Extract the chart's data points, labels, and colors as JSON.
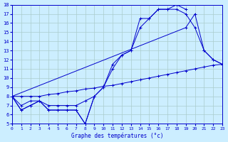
{
  "background_color": "#cceeff",
  "grid_color": "#aacccc",
  "line_color": "#0000cc",
  "x_label": "Graphe des températures (°c)",
  "xlim": [
    0,
    23
  ],
  "ylim": [
    5,
    18
  ],
  "yticks": [
    5,
    6,
    7,
    8,
    9,
    10,
    11,
    12,
    13,
    14,
    15,
    16,
    17,
    18
  ],
  "xticks": [
    0,
    1,
    2,
    3,
    4,
    5,
    6,
    7,
    8,
    9,
    10,
    11,
    12,
    13,
    14,
    15,
    16,
    17,
    18,
    19,
    20,
    21,
    22,
    23
  ],
  "series": [
    {
      "x": [
        0,
        1,
        2,
        3,
        4,
        5,
        6,
        7,
        8,
        9,
        10,
        11,
        12,
        13,
        14,
        15,
        16,
        17,
        18,
        19,
        20,
        21,
        22,
        23
      ],
      "y": [
        8,
        6.5,
        7,
        7.5,
        6.5,
        6.5,
        6.5,
        6.5,
        5.0,
        8.0,
        null,
        null,
        null,
        null,
        null,
        null,
        null,
        null,
        null,
        null,
        null,
        null,
        null,
        null
      ]
    },
    {
      "x": [
        0,
        1,
        2,
        3,
        4,
        5,
        6,
        7,
        8,
        9,
        10,
        11,
        12,
        13,
        14,
        15,
        16,
        17,
        18,
        19,
        20,
        21,
        22,
        23
      ],
      "y": [
        8.0,
        6.5,
        7.0,
        7.5,
        6.5,
        6.5,
        6.5,
        6.5,
        5.0,
        8.0,
        9.0,
        11.5,
        12.5,
        13.0,
        16.5,
        16.5,
        17.5,
        17.5,
        17.5,
        17.0,
        15.5,
        13.0,
        12.0,
        11.5
      ]
    },
    {
      "x": [
        0,
        1,
        2,
        3,
        4,
        5,
        6,
        7,
        8,
        9,
        10,
        11,
        12,
        13,
        14,
        15,
        16,
        17,
        18,
        19,
        20,
        21,
        22,
        23
      ],
      "y": [
        8.0,
        7.0,
        7.5,
        7.5,
        7.0,
        7.0,
        7.0,
        7.0,
        7.5,
        8.0,
        9.0,
        11.0,
        12.5,
        13.0,
        15.5,
        16.5,
        17.5,
        17.5,
        18.0,
        17.5,
        null,
        null,
        null,
        null
      ]
    },
    {
      "x": [
        0,
        1,
        2,
        3,
        4,
        5,
        6,
        7,
        8,
        9,
        10,
        11,
        12,
        13,
        14,
        15,
        16,
        17,
        18,
        19,
        20,
        21,
        22,
        23
      ],
      "y": [
        8.0,
        8.0,
        8.0,
        8.0,
        8.2,
        8.3,
        8.5,
        8.6,
        8.8,
        8.9,
        9.1,
        9.2,
        9.4,
        9.6,
        9.8,
        10.0,
        10.2,
        10.4,
        10.6,
        10.8,
        11.0,
        11.2,
        11.4,
        11.5
      ]
    },
    {
      "x": [
        0,
        19,
        20,
        21,
        22,
        23
      ],
      "y": [
        8.0,
        15.5,
        17.0,
        13.0,
        12.0,
        11.5
      ]
    }
  ]
}
